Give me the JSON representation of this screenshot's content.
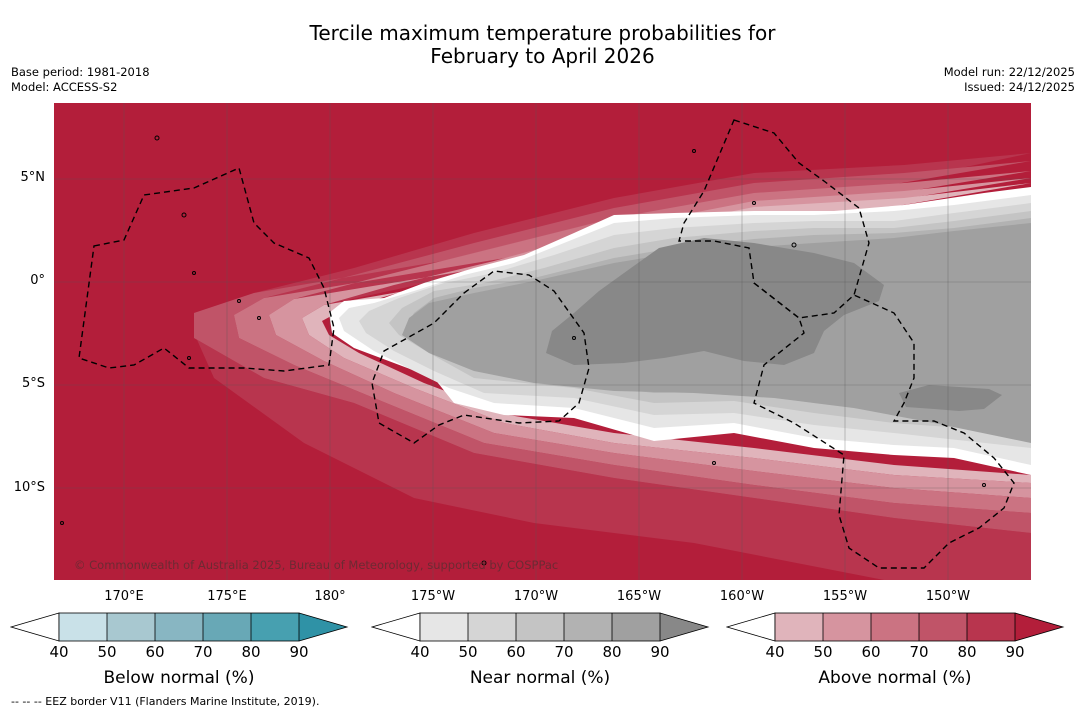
{
  "title_line1": "Tercile maximum temperature probabilities for",
  "title_line2": "February to April 2026",
  "base_period": "Base period: 1981-2018",
  "model": "Model: ACCESS-S2",
  "model_run": "Model run: 22/12/2025",
  "issued": "Issued: 24/12/2025",
  "copyright": "© Commonwealth of Australia 2025, Bureau of Meteorology, supported by COSPPac",
  "footnote": "--  --  -- EEZ border V11 (Flanders Marine Institute, 2019).",
  "lat_labels": [
    "5°N",
    "0°",
    "5°S",
    "10°S"
  ],
  "lon_labels": [
    "170°E",
    "175°E",
    "180°",
    "175°W",
    "170°W",
    "165°W",
    "160°W",
    "155°W",
    "150°W"
  ],
  "colorbars": [
    {
      "label": "Below normal (%)",
      "ticks": [
        "40",
        "50",
        "60",
        "70",
        "80",
        "90"
      ],
      "colors": [
        "#c9e1e8",
        "#a8c8d0",
        "#88b6c2",
        "#68a8b6",
        "#47a0b0",
        "#2f92a6"
      ]
    },
    {
      "label": "Near normal (%)",
      "ticks": [
        "40",
        "50",
        "60",
        "70",
        "80",
        "90"
      ],
      "colors": [
        "#e6e6e6",
        "#d5d5d5",
        "#c4c4c4",
        "#b2b2b2",
        "#a0a0a0",
        "#888888"
      ]
    },
    {
      "label": "Above normal (%)",
      "ticks": [
        "40",
        "50",
        "60",
        "70",
        "80",
        "90"
      ],
      "colors": [
        "#e0b4bb",
        "#d6949f",
        "#cb7382",
        "#c05468",
        "#b8354e",
        "#b31e3a"
      ]
    }
  ]
}
